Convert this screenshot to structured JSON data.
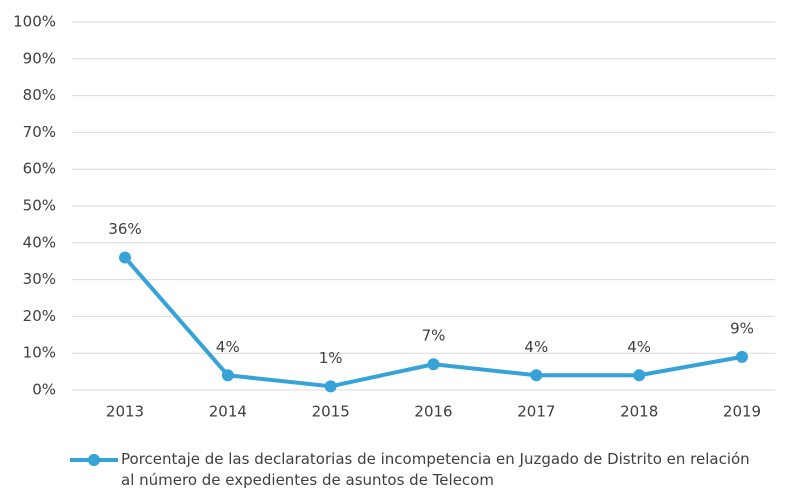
{
  "chart_data": {
    "type": "line",
    "categories": [
      "2013",
      "2014",
      "2015",
      "2016",
      "2017",
      "2018",
      "2019"
    ],
    "series": [
      {
        "name": "Porcentaje de las declaratorias de incompetencia en Juzgado de Distrito en relación al número de expedientes de asuntos de Telecom",
        "color": "#35a2d8",
        "values": [
          36,
          4,
          1,
          7,
          4,
          4,
          9
        ],
        "value_labels": [
          "36%",
          "4%",
          "1%",
          "7%",
          "4%",
          "4%",
          "9%"
        ]
      }
    ],
    "ylim": [
      0,
      100
    ],
    "yticks": [
      {
        "value": 0,
        "label": "0%"
      },
      {
        "value": 10,
        "label": "10%"
      },
      {
        "value": 20,
        "label": "20%"
      },
      {
        "value": 30,
        "label": "30%"
      },
      {
        "value": 40,
        "label": "40%"
      },
      {
        "value": 50,
        "label": "50%"
      },
      {
        "value": 60,
        "label": "60%"
      },
      {
        "value": 70,
        "label": "70%"
      },
      {
        "value": 80,
        "label": "80%"
      },
      {
        "value": 90,
        "label": "90%"
      },
      {
        "value": 100,
        "label": "100%"
      }
    ],
    "grid": true,
    "legend": "bottom"
  }
}
